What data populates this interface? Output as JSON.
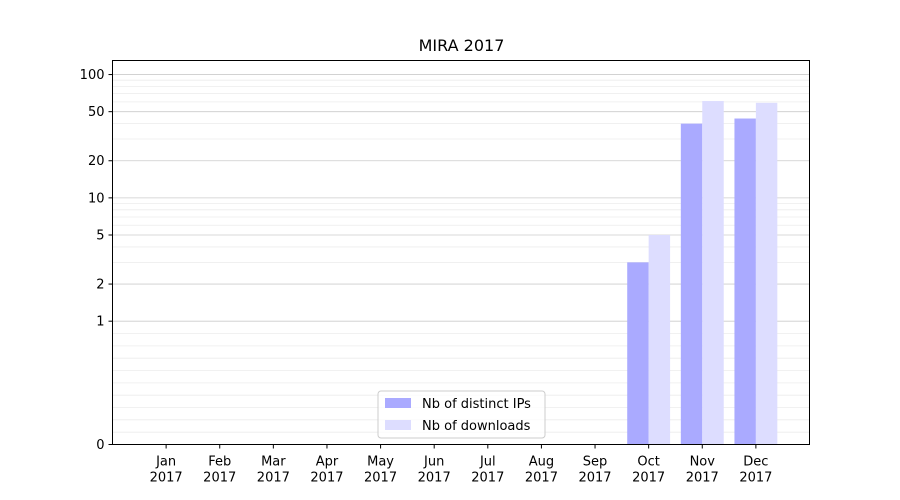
{
  "chart_data": {
    "type": "bar",
    "title": "MIRA 2017",
    "xlabel": "",
    "ylabel": "",
    "yscale": "symlog",
    "ylim": [
      0,
      130
    ],
    "y_major_ticks": [
      0,
      1,
      2,
      5,
      10,
      20,
      50,
      100
    ],
    "grid": true,
    "legend_position": "bottom-center",
    "categories": [
      {
        "month": "Jan",
        "year": "2017"
      },
      {
        "month": "Feb",
        "year": "2017"
      },
      {
        "month": "Mar",
        "year": "2017"
      },
      {
        "month": "Apr",
        "year": "2017"
      },
      {
        "month": "May",
        "year": "2017"
      },
      {
        "month": "Jun",
        "year": "2017"
      },
      {
        "month": "Jul",
        "year": "2017"
      },
      {
        "month": "Aug",
        "year": "2017"
      },
      {
        "month": "Sep",
        "year": "2017"
      },
      {
        "month": "Oct",
        "year": "2017"
      },
      {
        "month": "Nov",
        "year": "2017"
      },
      {
        "month": "Dec",
        "year": "2017"
      }
    ],
    "series": [
      {
        "name": "Nb of distinct IPs",
        "color": "#aaaaff",
        "values": [
          0,
          0,
          0,
          0,
          0,
          0,
          0,
          0,
          0,
          3,
          40,
          44
        ]
      },
      {
        "name": "Nb of downloads",
        "color": "#ddddff",
        "values": [
          0,
          0,
          0,
          0,
          0,
          0,
          0,
          0,
          0,
          5,
          61,
          59
        ]
      }
    ]
  }
}
